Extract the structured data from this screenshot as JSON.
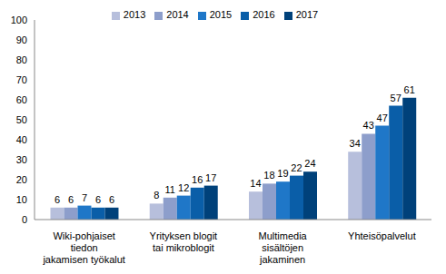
{
  "chart_data": {
    "type": "bar",
    "categories": [
      "Wiki-pohjaiset\ntiedon\njakamisen työkalut",
      "Yrityksen blogit\ntai mikroblogit",
      "Multimedia\nsisältöjen\njakaminen",
      "Yhteisöpalvelut"
    ],
    "series": [
      {
        "name": "2013",
        "color": "#b7bfdc",
        "values": [
          6,
          8,
          14,
          34
        ]
      },
      {
        "name": "2014",
        "color": "#8d9ecb",
        "values": [
          6,
          11,
          18,
          43
        ]
      },
      {
        "name": "2015",
        "color": "#1f77c8",
        "values": [
          7,
          12,
          19,
          47
        ]
      },
      {
        "name": "2016",
        "color": "#0a5ea8",
        "values": [
          6,
          16,
          22,
          57
        ]
      },
      {
        "name": "2017",
        "color": "#00417a",
        "values": [
          6,
          17,
          24,
          61
        ]
      }
    ],
    "ylim": [
      0,
      100
    ],
    "yticks": [
      0,
      10,
      20,
      30,
      40,
      50,
      60,
      70,
      80,
      90,
      100
    ],
    "grid": false,
    "legend": "top",
    "data_labels": true
  }
}
